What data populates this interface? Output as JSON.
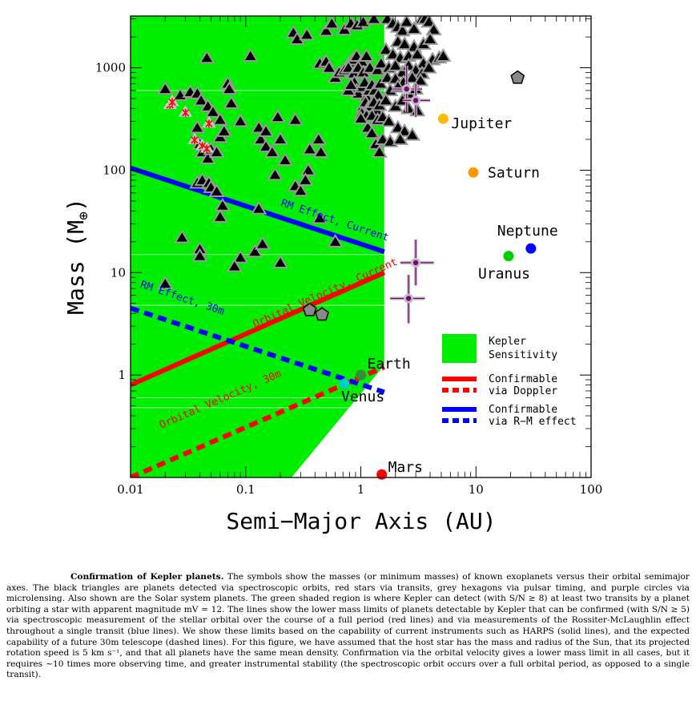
{
  "chart_data": {
    "type": "scatter",
    "xlabel": "Semi−Major Axis (AU)",
    "ylabel": "Mass (M⊕)",
    "xscale": "log",
    "yscale": "log",
    "xlim": [
      0.01,
      100
    ],
    "ylim": [
      0.1,
      3200
    ],
    "x_ticks": [
      {
        "v": 0.01,
        "label": "0.01"
      },
      {
        "v": 0.1,
        "label": "0.1"
      },
      {
        "v": 1,
        "label": "1"
      },
      {
        "v": 10,
        "label": "10"
      },
      {
        "v": 100,
        "label": "100"
      }
    ],
    "y_ticks": [
      {
        "v": 1,
        "label": "1"
      },
      {
        "v": 10,
        "label": "10"
      },
      {
        "v": 100,
        "label": "100"
      },
      {
        "v": 1000,
        "label": "1000"
      }
    ],
    "colors": {
      "kepler_region": "#00ee00",
      "doppler": "#ff0000",
      "rm": "#0000ff",
      "triangle": "#000000",
      "triangle_outline": "#999999",
      "hexagon": "#888888",
      "microlensing": "#800080",
      "mercury_grid": "#ffffff"
    },
    "kepler_region": {
      "label": "Kepler Sensitivity",
      "boundary": [
        [
          0.01,
          0.1
        ],
        [
          0.01,
          3200
        ],
        [
          1.6,
          3200
        ],
        [
          1.6,
          1.25
        ],
        [
          0.25,
          0.1
        ]
      ]
    },
    "lines": [
      {
        "name": "RM Effect, Current",
        "color": "#0000ff",
        "style": "solid",
        "points": [
          [
            0.01,
            105
          ],
          [
            1.6,
            16
          ]
        ]
      },
      {
        "name": "Orbital Velocity, Current",
        "color": "#ff0000",
        "style": "solid",
        "points": [
          [
            0.01,
            0.8
          ],
          [
            1.6,
            10
          ]
        ]
      },
      {
        "name": "RM Effect, 30m",
        "color": "#0000ff",
        "style": "dashed",
        "points": [
          [
            0.01,
            4.5
          ],
          [
            1.6,
            0.68
          ]
        ]
      },
      {
        "name": "Orbital Velocity, 30m",
        "color": "#ff0000",
        "style": "dashed",
        "points": [
          [
            0.01,
            0.1
          ],
          [
            1.6,
            1.2
          ]
        ]
      }
    ],
    "line_labels": [
      {
        "text": "RM Effect, Current",
        "x": 0.2,
        "y": 45,
        "color": "#0000ff"
      },
      {
        "text": "Orbital Velocity, Current",
        "x": 0.12,
        "y": 2.9,
        "color": "#ff0000"
      },
      {
        "text": "RM Effect, 30m",
        "x": 0.012,
        "y": 7.2,
        "color": "#0000ff"
      },
      {
        "text": "Orbital Velocity, 30m",
        "x": 0.0185,
        "y": 0.3,
        "color": "#ff0000"
      }
    ],
    "solar_system": [
      {
        "name": "Jupiter",
        "x": 5.2,
        "y": 318,
        "color": "#ffbb00"
      },
      {
        "name": "Saturn",
        "x": 9.5,
        "y": 95,
        "color": "#ff9900"
      },
      {
        "name": "Neptune",
        "x": 30,
        "y": 17.2,
        "color": "#0000ff"
      },
      {
        "name": "Uranus",
        "x": 19.2,
        "y": 14.5,
        "color": "#00cc00"
      },
      {
        "name": "Earth",
        "x": 1.0,
        "y": 1.0,
        "color": "#3a8a3a"
      },
      {
        "name": "Venus",
        "x": 0.72,
        "y": 0.82,
        "color": "#00cccc"
      },
      {
        "name": "Mars",
        "x": 1.52,
        "y": 0.107,
        "color": "#ff0000"
      }
    ],
    "doppler_planets": [
      [
        0.046,
        1250
      ],
      [
        0.11,
        1300
      ],
      [
        0.26,
        2200
      ],
      [
        0.28,
        1900
      ],
      [
        0.34,
        2100
      ],
      [
        0.5,
        2300
      ],
      [
        0.56,
        2700
      ],
      [
        0.72,
        2350
      ],
      [
        0.82,
        2700
      ],
      [
        0.93,
        2600
      ],
      [
        1.05,
        2800
      ],
      [
        1.3,
        3000
      ],
      [
        0.44,
        1100
      ],
      [
        0.5,
        1150
      ],
      [
        0.53,
        1000
      ],
      [
        0.8,
        1120
      ],
      [
        0.85,
        1200
      ],
      [
        0.92,
        1300
      ],
      [
        1.02,
        1150
      ],
      [
        1.12,
        1300
      ],
      [
        0.6,
        800
      ],
      [
        0.65,
        900
      ],
      [
        0.72,
        950
      ],
      [
        0.78,
        1000
      ],
      [
        0.87,
        880
      ],
      [
        0.95,
        1000
      ],
      [
        1.05,
        900
      ],
      [
        1.2,
        1000
      ],
      [
        1.4,
        950
      ],
      [
        1.5,
        1100
      ],
      [
        0.88,
        720
      ],
      [
        0.92,
        600
      ],
      [
        0.95,
        560
      ],
      [
        1.02,
        650
      ],
      [
        1.08,
        720
      ],
      [
        1.12,
        520
      ],
      [
        1.18,
        600
      ],
      [
        1.25,
        680
      ],
      [
        1.32,
        600
      ],
      [
        1.42,
        540
      ],
      [
        1.48,
        700
      ],
      [
        0.78,
        600
      ],
      [
        0.82,
        680
      ],
      [
        1.05,
        420
      ],
      [
        1.1,
        460
      ],
      [
        1.15,
        400
      ],
      [
        1.22,
        420
      ],
      [
        1.3,
        460
      ],
      [
        1.38,
        380
      ],
      [
        1.45,
        430
      ],
      [
        1.02,
        360
      ],
      [
        1.12,
        340
      ],
      [
        1.25,
        340
      ],
      [
        1.4,
        310
      ],
      [
        1.55,
        330
      ],
      [
        1.15,
        260
      ],
      [
        1.25,
        230
      ],
      [
        1.35,
        180
      ],
      [
        1.45,
        150
      ],
      [
        1.55,
        200
      ],
      [
        1.0,
        320
      ],
      [
        1.7,
        3000
      ],
      [
        1.9,
        2700
      ],
      [
        2.1,
        2500
      ],
      [
        2.3,
        2300
      ],
      [
        2.5,
        2800
      ],
      [
        2.9,
        2400
      ],
      [
        3.4,
        3000
      ],
      [
        3.6,
        3000
      ],
      [
        3.9,
        2800
      ],
      [
        4.3,
        2350
      ],
      [
        2.1,
        1800
      ],
      [
        2.4,
        1700
      ],
      [
        2.9,
        1600
      ],
      [
        3.5,
        1700
      ],
      [
        4.0,
        1900
      ],
      [
        1.65,
        1500
      ],
      [
        1.9,
        1350
      ],
      [
        2.2,
        1250
      ],
      [
        2.6,
        1300
      ],
      [
        3.1,
        1350
      ],
      [
        3.5,
        1100
      ],
      [
        4.2,
        1200
      ],
      [
        4.8,
        1250
      ],
      [
        5.2,
        1300
      ],
      [
        1.75,
        1000
      ],
      [
        2.0,
        1050
      ],
      [
        2.3,
        900
      ],
      [
        2.6,
        1050
      ],
      [
        3.0,
        950
      ],
      [
        3.4,
        880
      ],
      [
        3.9,
        1000
      ],
      [
        1.7,
        800
      ],
      [
        2.0,
        780
      ],
      [
        2.35,
        720
      ],
      [
        2.8,
        800
      ],
      [
        3.3,
        750
      ],
      [
        1.8,
        600
      ],
      [
        2.1,
        650
      ],
      [
        2.6,
        560
      ],
      [
        3.0,
        620
      ],
      [
        1.65,
        480
      ],
      [
        2.0,
        420
      ],
      [
        2.3,
        480
      ],
      [
        2.6,
        400
      ],
      [
        3.1,
        380
      ],
      [
        1.75,
        300
      ],
      [
        2.1,
        260
      ],
      [
        2.4,
        240
      ],
      [
        2.8,
        220
      ],
      [
        1.8,
        190
      ],
      [
        2.2,
        200
      ],
      [
        0.02,
        620
      ],
      [
        0.027,
        540
      ],
      [
        0.033,
        580
      ],
      [
        0.038,
        560
      ],
      [
        0.041,
        480
      ],
      [
        0.047,
        420
      ],
      [
        0.052,
        370
      ],
      [
        0.06,
        310
      ],
      [
        0.07,
        700
      ],
      [
        0.072,
        620
      ],
      [
        0.075,
        450
      ],
      [
        0.09,
        300
      ],
      [
        0.13,
        260
      ],
      [
        0.135,
        200
      ],
      [
        0.19,
        330
      ],
      [
        0.2,
        200
      ],
      [
        0.27,
        310
      ],
      [
        0.36,
        160
      ],
      [
        0.43,
        200
      ],
      [
        0.45,
        150
      ],
      [
        0.038,
        260
      ],
      [
        0.04,
        180
      ],
      [
        0.042,
        150
      ],
      [
        0.047,
        130
      ],
      [
        0.05,
        160
      ],
      [
        0.056,
        150
      ],
      [
        0.06,
        210
      ],
      [
        0.065,
        240
      ],
      [
        0.15,
        240
      ],
      [
        0.15,
        170
      ],
      [
        0.17,
        150
      ],
      [
        0.22,
        125
      ],
      [
        0.35,
        100
      ],
      [
        0.038,
        75
      ],
      [
        0.042,
        80
      ],
      [
        0.048,
        75
      ],
      [
        0.05,
        68
      ],
      [
        0.056,
        62
      ],
      [
        0.063,
        45
      ],
      [
        0.13,
        42
      ],
      [
        0.27,
        70
      ],
      [
        0.3,
        63
      ],
      [
        0.33,
        80
      ],
      [
        0.18,
        90
      ],
      [
        0.06,
        35
      ],
      [
        0.028,
        22
      ],
      [
        0.04,
        17
      ],
      [
        0.04,
        14.5
      ],
      [
        0.12,
        16
      ],
      [
        0.14,
        19
      ],
      [
        0.09,
        14
      ],
      [
        0.08,
        11.5
      ],
      [
        0.2,
        12.5
      ],
      [
        0.6,
        20
      ],
      [
        0.02,
        7.8
      ],
      [
        0.44,
        34
      ]
    ],
    "transit_planets": [
      [
        0.022,
        440
      ],
      [
        0.023,
        470
      ],
      [
        0.03,
        370
      ],
      [
        0.036,
        200
      ],
      [
        0.042,
        175
      ],
      [
        0.048,
        290
      ],
      [
        0.046,
        165
      ]
    ],
    "pulsar_planets": [
      [
        0.36,
        4.3
      ],
      [
        0.46,
        3.9
      ],
      [
        23,
        800
      ]
    ],
    "microlensing_planets": [
      {
        "x": 2.5,
        "y": 620,
        "xerr": [
          1.9,
          3.4
        ],
        "yerr": [
          370,
          1050
        ]
      },
      {
        "x": 3.0,
        "y": 480,
        "xerr": [
          2.3,
          4.0
        ],
        "yerr": [
          330,
          680
        ]
      },
      {
        "x": 3.0,
        "y": 12.5,
        "xerr": [
          2.2,
          4.3
        ],
        "yerr": [
          7.5,
          21
        ]
      },
      {
        "x": 2.6,
        "y": 5.6,
        "xerr": [
          1.8,
          3.6
        ],
        "yerr": [
          3.2,
          9.5
        ]
      }
    ],
    "legend": {
      "placement": "lower-right",
      "entries": [
        {
          "label_lines": [
            "Kepler",
            "Sensitivity"
          ]
        },
        {
          "label_lines": [
            "Confirmable",
            "via Doppler"
          ]
        },
        {
          "label_lines": [
            "Confirmable",
            "via R−M effect"
          ]
        }
      ]
    }
  },
  "caption": {
    "title": "Confirmation of Kepler planets.",
    "text": "The symbols show the masses (or minimum masses) of known exoplanets versus their orbital semimajor axes. The black triangles are planets detected via spectroscopic orbits, red stars via transits, grey hexagons via pulsar timing, and purple circles via microlensing. Also shown are the Solar system planets. The green shaded region is where Kepler can detect (with S/N ≥ 8) at least two transits by a planet orbiting a star with apparent magnitude mV = 12. The lines show the lower mass limits of planets detectable by Kepler that can be confirmed (with S/N ≥ 5) via spectroscopic measurement of the stellar orbital over the course of a full period (red lines) and via measurements of the Rossiter-McLaughlin effect throughout a single transit (blue lines). We show these limits based on the capability of current instruments such as HARPS (solid lines), and the expected capability of a future 30m telescope (dashed lines). For this figure, we have assumed that the host star has the mass and radius of the Sun, that its projected rotation speed is 5 km s⁻¹, and that all planets have the same mean density. Confirmation via the orbital velocity gives a lower mass limit in all cases, but it requires ~10 times more observing time, and greater instrumental stability (the spectroscopic orbit occurs over a full orbital period, as opposed to a single transit)."
  }
}
